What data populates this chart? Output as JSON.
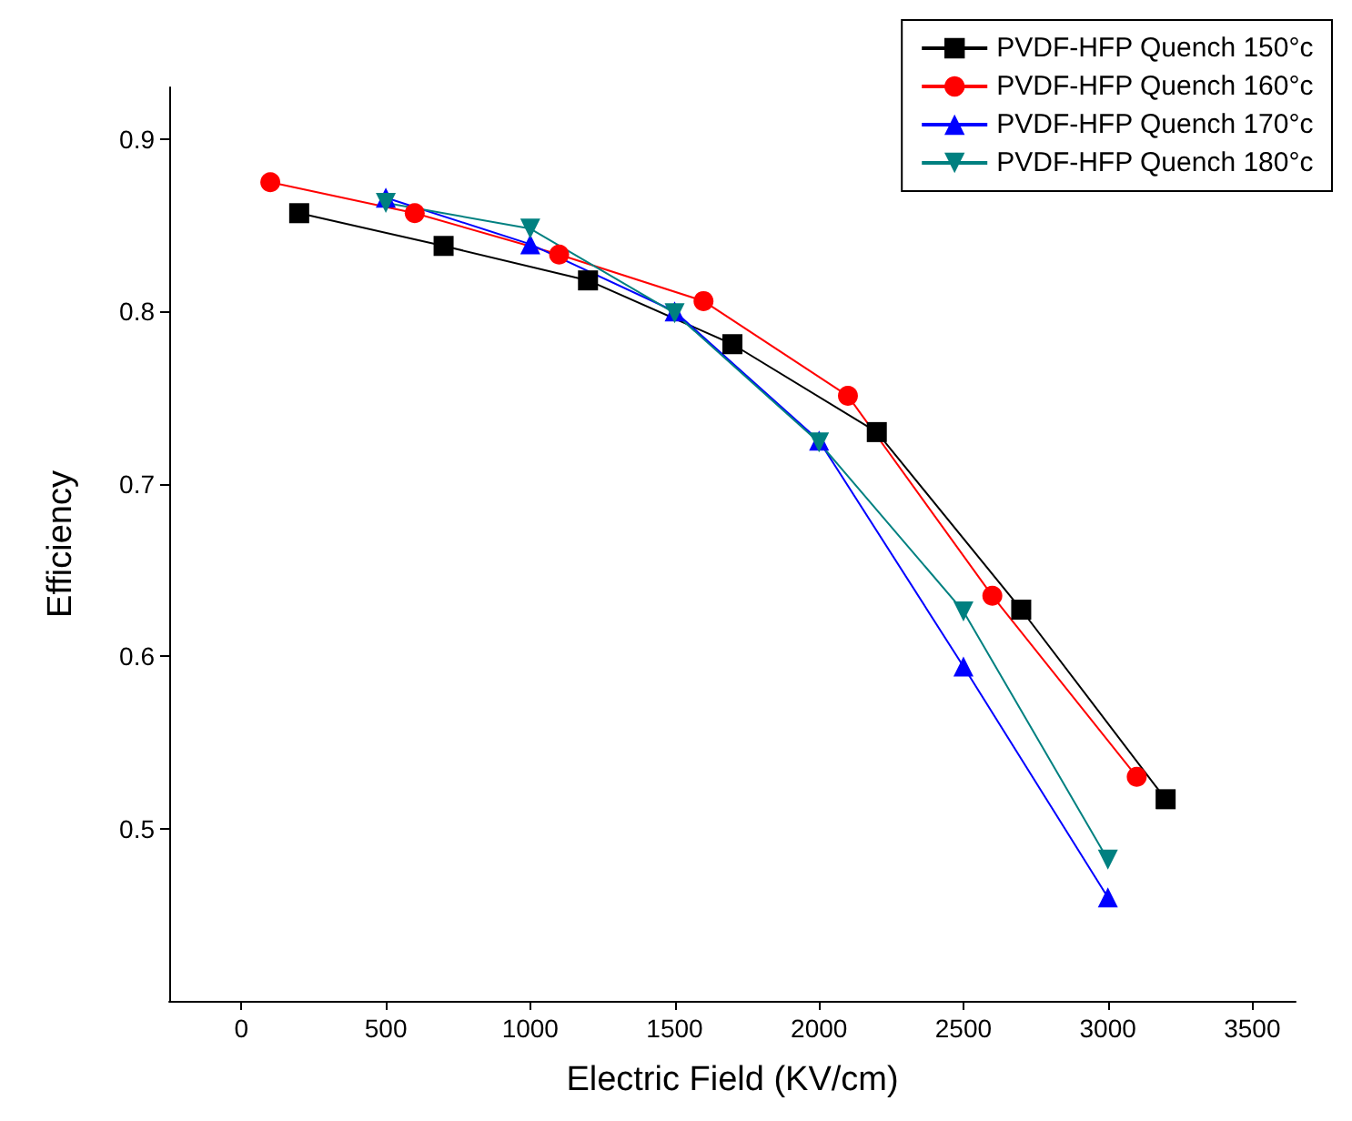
{
  "chart_data": {
    "type": "line",
    "xlabel": "Electric Field (KV/cm)",
    "ylabel": "Efficiency",
    "xlim": [
      -250,
      3650
    ],
    "xticks": [
      0,
      500,
      1000,
      1500,
      2000,
      2500,
      3000,
      3500
    ],
    "ylim": [
      0.4,
      0.93
    ],
    "yticks": [
      0.5,
      0.6,
      0.7,
      0.8,
      0.9
    ],
    "grid": false,
    "legend": "top right",
    "series": [
      {
        "name": "PVDF-HFP Quench 150°c",
        "color": "#000000",
        "marker": "square",
        "x": [
          200,
          700,
          1200,
          1700,
          2200,
          2700,
          3200
        ],
        "values": [
          0.857,
          0.838,
          0.818,
          0.781,
          0.73,
          0.627,
          0.517
        ]
      },
      {
        "name": "PVDF-HFP Quench 160°c",
        "color": "#ff0000",
        "marker": "circle",
        "x": [
          100,
          600,
          1100,
          1600,
          2100,
          2600,
          3100
        ],
        "values": [
          0.875,
          0.857,
          0.833,
          0.806,
          0.751,
          0.635,
          0.53
        ]
      },
      {
        "name": "PVDF-HFP Quench 170°c",
        "color": "#0000ff",
        "marker": "triangle",
        "x": [
          500,
          1000,
          1500,
          2000,
          2500,
          3000
        ],
        "values": [
          0.866,
          0.839,
          0.8,
          0.725,
          0.594,
          0.46
        ]
      },
      {
        "name": "PVDF-HFP Quench 180°c",
        "color": "#008080",
        "marker": "triangle-down",
        "x": [
          500,
          1000,
          1500,
          2000,
          2500,
          3000
        ],
        "values": [
          0.863,
          0.848,
          0.799,
          0.724,
          0.626,
          0.482
        ]
      }
    ]
  }
}
